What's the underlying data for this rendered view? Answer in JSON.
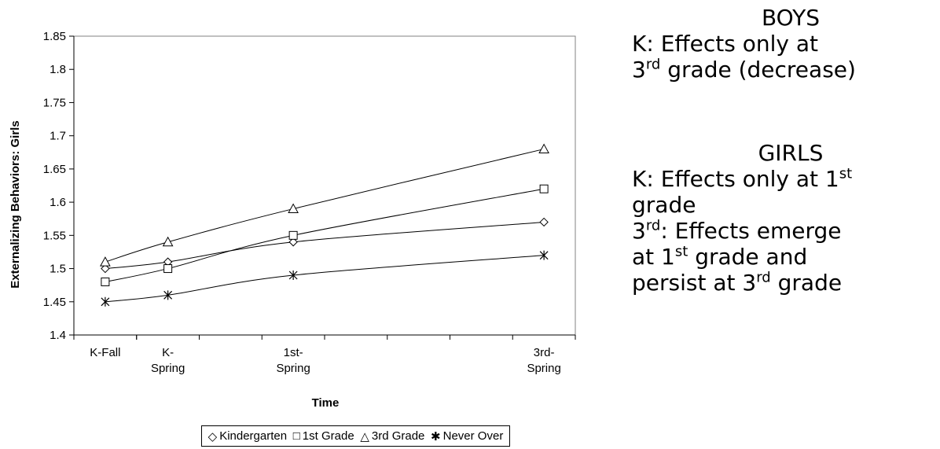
{
  "chart_data": {
    "type": "line",
    "title": "",
    "xlabel": "Time",
    "ylabel": "Externalizing Behaviors: Girls",
    "categories": [
      [
        "K-Fall"
      ],
      [
        "K-",
        "Spring"
      ],
      [
        "1st-",
        "Spring"
      ],
      [
        "3rd-",
        "Spring"
      ]
    ],
    "x": [
      0,
      1,
      3,
      7
    ],
    "x_ticks": [
      0,
      1,
      2,
      3,
      4,
      5,
      6,
      7
    ],
    "ylim": [
      1.4,
      1.85
    ],
    "yticks": [
      "1.4",
      "1.45",
      "1.5",
      "1.55",
      "1.6",
      "1.65",
      "1.7",
      "1.75",
      "1.8",
      "1.85"
    ],
    "grid": false,
    "legend_position": "bottom",
    "series": [
      {
        "name": "Kindergarten",
        "marker": "diamond",
        "glyph": "◇",
        "values": [
          1.5,
          1.51,
          1.54,
          1.57
        ]
      },
      {
        "name": "1st Grade",
        "marker": "square",
        "glyph": "□",
        "values": [
          1.48,
          1.5,
          1.55,
          1.62
        ]
      },
      {
        "name": "3rd Grade",
        "marker": "triangle",
        "glyph": "△",
        "values": [
          1.51,
          1.54,
          1.59,
          1.68
        ]
      },
      {
        "name": "Never Over",
        "marker": "asterisk",
        "glyph": "✱",
        "values": [
          1.45,
          1.46,
          1.49,
          1.52
        ]
      }
    ]
  },
  "notes": {
    "boys_heading": "BOYS",
    "boys_k_a": "K:  Effects only at",
    "boys_k_b1": "3",
    "boys_k_b_sup": "rd",
    "boys_k_b2": " grade (decrease)",
    "girls_heading": "GIRLS",
    "girls_k_a1": "K:  Effects only at 1",
    "girls_k_a_sup": "st",
    "girls_k_b": "grade",
    "girls_3_a1": "3",
    "girls_3_a_sup": "rd",
    "girls_3_a2": ": Effects emerge",
    "girls_3_b1": "at 1",
    "girls_3_b_sup": "st",
    "girls_3_b2": " grade and",
    "girls_3_c1": "persist at 3",
    "girls_3_c_sup": "rd",
    "girls_3_c2": " grade"
  }
}
